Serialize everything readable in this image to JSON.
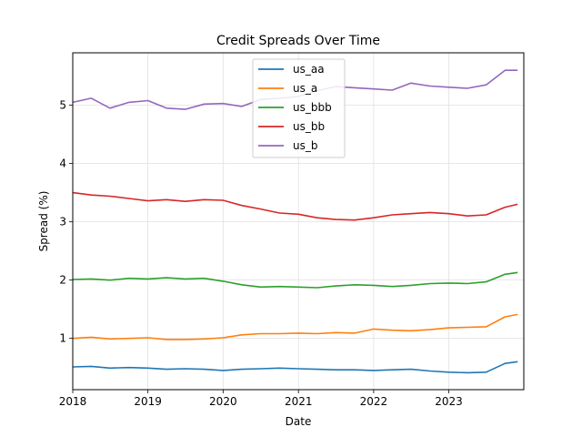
{
  "chart_data": {
    "type": "line",
    "title": "Credit Spreads Over Time",
    "xlabel": "Date",
    "ylabel": "Spread (%)",
    "xlim": [
      "2018-01-01",
      "2023-12-31"
    ],
    "ylim": [
      0.12,
      5.9
    ],
    "x_ticks": [
      "2018",
      "2019",
      "2020",
      "2021",
      "2022",
      "2023"
    ],
    "y_ticks": [
      1,
      2,
      3,
      4,
      5
    ],
    "grid": true,
    "legend_position": "top-center",
    "x": [
      "2018-01",
      "2018-04",
      "2018-07",
      "2018-10",
      "2019-01",
      "2019-04",
      "2019-07",
      "2019-10",
      "2020-01",
      "2020-04",
      "2020-07",
      "2020-10",
      "2021-01",
      "2021-04",
      "2021-07",
      "2021-10",
      "2022-01",
      "2022-04",
      "2022-07",
      "2022-10",
      "2023-01",
      "2023-04",
      "2023-07",
      "2023-10",
      "2023-12"
    ],
    "series": [
      {
        "name": "us_aa",
        "color": "#1f77b4",
        "values": [
          0.51,
          0.52,
          0.49,
          0.5,
          0.49,
          0.47,
          0.48,
          0.47,
          0.45,
          0.47,
          0.48,
          0.49,
          0.48,
          0.47,
          0.46,
          0.46,
          0.45,
          0.46,
          0.47,
          0.44,
          0.42,
          0.41,
          0.42,
          0.57,
          0.6
        ]
      },
      {
        "name": "us_a",
        "color": "#ff7f0e",
        "values": [
          1.0,
          1.02,
          0.99,
          1.0,
          1.01,
          0.98,
          0.98,
          0.99,
          1.01,
          1.06,
          1.08,
          1.08,
          1.09,
          1.08,
          1.1,
          1.09,
          1.16,
          1.14,
          1.13,
          1.15,
          1.18,
          1.19,
          1.2,
          1.37,
          1.41
        ]
      },
      {
        "name": "us_bbb",
        "color": "#2ca02c",
        "values": [
          2.01,
          2.02,
          2.0,
          2.03,
          2.02,
          2.04,
          2.02,
          2.03,
          1.98,
          1.92,
          1.88,
          1.89,
          1.88,
          1.87,
          1.9,
          1.92,
          1.91,
          1.89,
          1.91,
          1.94,
          1.95,
          1.94,
          1.97,
          2.1,
          2.13
        ]
      },
      {
        "name": "us_bb",
        "color": "#d62728",
        "values": [
          3.5,
          3.46,
          3.44,
          3.4,
          3.36,
          3.38,
          3.35,
          3.38,
          3.37,
          3.28,
          3.22,
          3.15,
          3.13,
          3.07,
          3.04,
          3.03,
          3.07,
          3.12,
          3.14,
          3.16,
          3.14,
          3.1,
          3.12,
          3.25,
          3.3
        ]
      },
      {
        "name": "us_b",
        "color": "#9467bd",
        "values": [
          5.05,
          5.12,
          4.95,
          5.05,
          5.08,
          4.95,
          4.93,
          5.02,
          5.03,
          4.98,
          5.1,
          5.12,
          5.15,
          5.25,
          5.32,
          5.3,
          5.28,
          5.26,
          5.38,
          5.33,
          5.31,
          5.29,
          5.35,
          5.6,
          5.6
        ]
      }
    ]
  }
}
